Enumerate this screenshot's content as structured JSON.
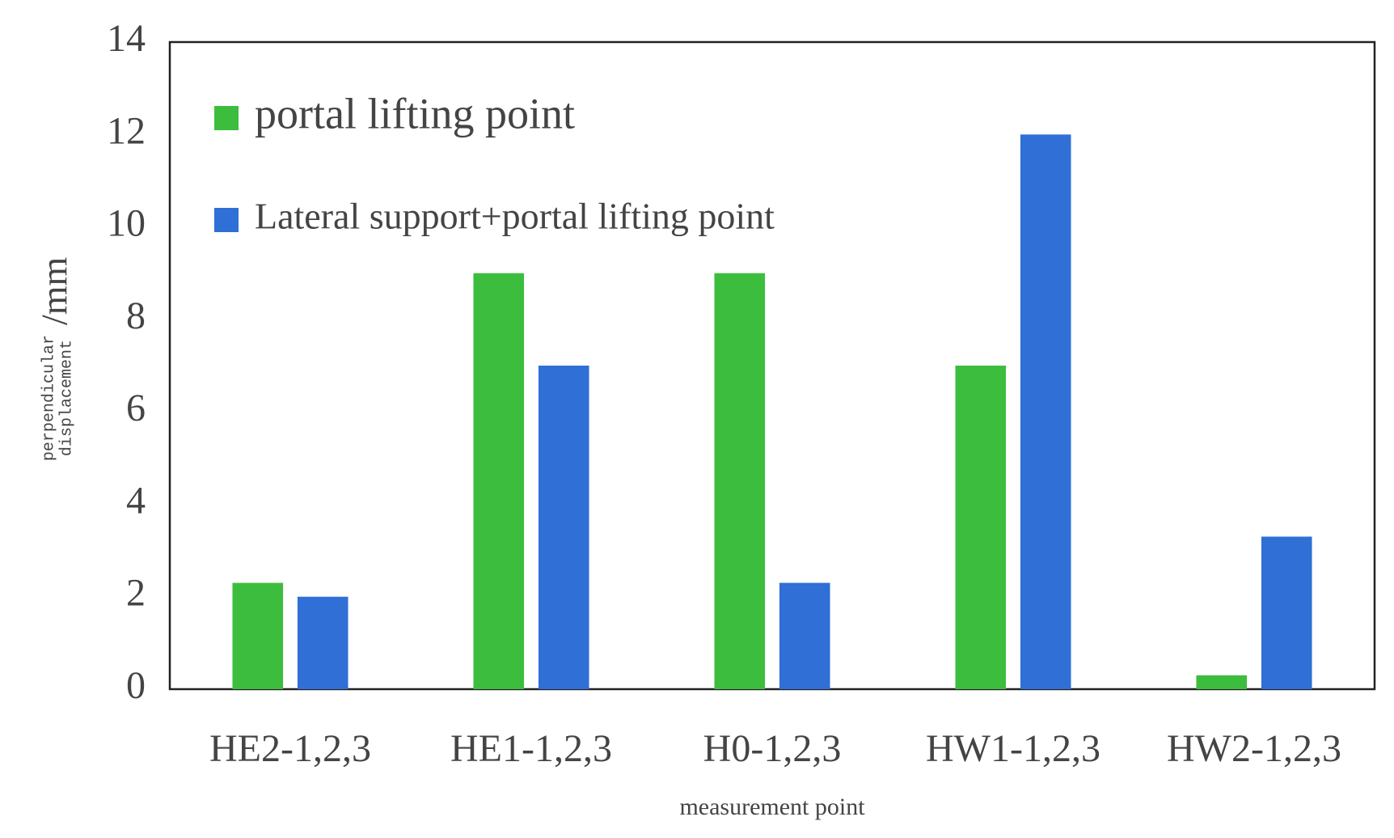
{
  "chart_data": {
    "type": "bar",
    "x_label": "measurement point",
    "y_label_lines": [
      "perpendicular",
      "displacement"
    ],
    "y_label_unit": "/mm",
    "categories": [
      "HE2-1,2,3",
      "HE1-1,2,3",
      "H0-1,2,3",
      "HW1-1,2,3",
      "HW2-1,2,3"
    ],
    "series": [
      {
        "name": "portal lifting point",
        "color": "#3dbd3d",
        "values": [
          2.3,
          9,
          9,
          7,
          0.3
        ]
      },
      {
        "name": "Lateral support+portal lifting point",
        "color": "#2f6fd6",
        "values": [
          2.0,
          7,
          2.3,
          12,
          3.3
        ]
      }
    ],
    "ylim": [
      0,
      14
    ],
    "yticks": [
      0,
      2,
      4,
      6,
      8,
      10,
      12,
      14
    ],
    "grid": false,
    "legend": "upper left"
  }
}
